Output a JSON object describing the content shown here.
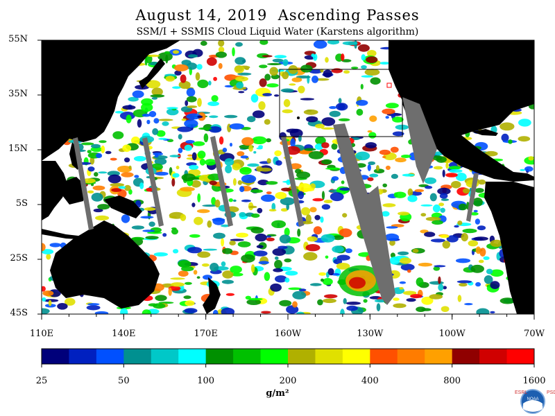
{
  "title": "August 14, 2019  Ascending Passes",
  "subtitle": "SSM/I + SSMIS Cloud Liquid Water (Karstens algorithm)",
  "latitude_labels": [
    "55N",
    "35N",
    "15N",
    "5S",
    "25S",
    "45S"
  ],
  "longitude_labels": [
    "110E",
    "140E",
    "170E",
    "160W",
    "130W",
    "100W",
    "70W"
  ],
  "colorbar": {
    "colors": [
      "#00007a",
      "#0020c0",
      "#0050ff",
      "#009090",
      "#00c8c8",
      "#00ffff",
      "#009000",
      "#00c000",
      "#00ff00",
      "#b0b000",
      "#e0e000",
      "#ffff00",
      "#ff5000",
      "#ff7c00",
      "#ffa000",
      "#900000",
      "#d00000",
      "#ff0000"
    ],
    "tick_labels": [
      "25",
      "50",
      "100",
      "200",
      "400",
      "800",
      "1600"
    ],
    "unit": "g/m²"
  },
  "map_colors": {
    "land": "#000000",
    "ocean": "#ffffff",
    "no_data": "#6e6e6e"
  },
  "logo": {
    "name": "noaa-logo",
    "left_text": "ESRL",
    "right_text": "PSD"
  }
}
